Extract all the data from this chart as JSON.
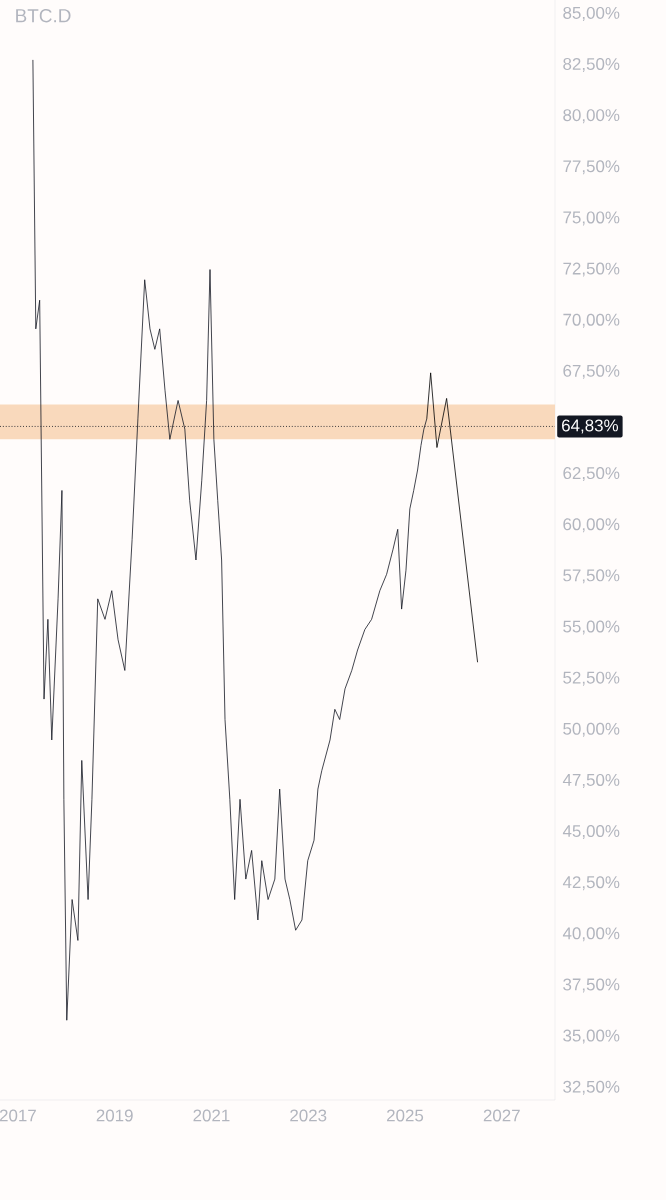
{
  "chart_data": {
    "type": "line",
    "title": "BTC.D",
    "xlim": [
      2016.63,
      2028.1
    ],
    "ylim": [
      31.9,
      85.68
    ],
    "xticks": [
      2017,
      2019,
      2021,
      2023,
      2025,
      2027
    ],
    "yticks": [
      {
        "value": 32.5,
        "label": "32,50%"
      },
      {
        "value": 35,
        "label": "35,00%"
      },
      {
        "value": 37.5,
        "label": "37,50%"
      },
      {
        "value": 40,
        "label": "40,00%"
      },
      {
        "value": 42.5,
        "label": "42,50%"
      },
      {
        "value": 45,
        "label": "45,00%"
      },
      {
        "value": 47.5,
        "label": "47,50%"
      },
      {
        "value": 50,
        "label": "50,00%"
      },
      {
        "value": 52.5,
        "label": "52,50%"
      },
      {
        "value": 55,
        "label": "55,00%"
      },
      {
        "value": 57.5,
        "label": "57,50%"
      },
      {
        "value": 60,
        "label": "60,00%"
      },
      {
        "value": 62.5,
        "label": "62,50%"
      },
      {
        "value": 67.5,
        "label": "67,50%"
      },
      {
        "value": 70,
        "label": "70,00%"
      },
      {
        "value": 72.5,
        "label": "72,50%"
      },
      {
        "value": 75,
        "label": "75,00%"
      },
      {
        "value": 77.5,
        "label": "77,50%"
      },
      {
        "value": 80,
        "label": "80,00%"
      },
      {
        "value": 82.5,
        "label": "82,50%"
      },
      {
        "value": 85,
        "label": "85,00%"
      }
    ],
    "series": [
      {
        "color": "#131722",
        "x": [
          2017.31,
          2017.37,
          2017.45,
          2017.54,
          2017.62,
          2017.7,
          2017.83,
          2017.91,
          2017.95,
          2018.01,
          2018.12,
          2018.24,
          2018.32,
          2018.45,
          2018.53,
          2018.65,
          2018.8,
          2018.94,
          2019.07,
          2019.21,
          2019.36,
          2019.48,
          2019.62,
          2019.73,
          2019.83,
          2019.93,
          2020.04,
          2020.14,
          2020.31,
          2020.45,
          2020.55,
          2020.68,
          2020.8,
          2020.9,
          2020.97,
          2021.05,
          2021.13,
          2021.21,
          2021.28,
          2021.38,
          2021.48,
          2021.59,
          2021.71,
          2021.83,
          2021.96,
          2022.04,
          2022.17,
          2022.31,
          2022.41,
          2022.52,
          2022.62,
          2022.74,
          2022.87,
          2022.99,
          2023.12,
          2023.2,
          2023.28,
          2023.45,
          2023.55,
          2023.65,
          2023.76,
          2023.9,
          2024.02,
          2024.17,
          2024.31,
          2024.48,
          2024.62,
          2024.75,
          2024.85,
          2024.93,
          2025.02,
          2025.1,
          2025.18,
          2025.26,
          2025.33,
          2025.39,
          2025.45
        ],
        "values": [
          82.75,
          69.6,
          71.0,
          51.5,
          55.4,
          49.5,
          56.4,
          61.7,
          46.6,
          35.8,
          41.7,
          39.7,
          48.5,
          41.7,
          46.6,
          56.4,
          55.4,
          56.8,
          54.4,
          52.9,
          59.3,
          65.2,
          72.0,
          69.6,
          68.6,
          69.6,
          66.6,
          64.2,
          66.1,
          64.7,
          61.2,
          58.3,
          62.2,
          66.1,
          72.5,
          64.2,
          61.2,
          58.3,
          50.5,
          46.6,
          41.7,
          46.6,
          42.7,
          44.1,
          40.7,
          43.6,
          41.7,
          42.7,
          47.1,
          42.7,
          41.7,
          40.2,
          40.7,
          43.6,
          44.6,
          47.1,
          48.0,
          49.5,
          51.0,
          50.5,
          52.0,
          52.9,
          53.9,
          54.9,
          55.4,
          56.8,
          57.6,
          58.8,
          59.8,
          55.9,
          57.8,
          60.8,
          61.7,
          62.7,
          63.9,
          64.7,
          65.2
        ]
      },
      {
        "color": "#000000",
        "x": [
          2025.45,
          2025.53,
          2025.66,
          2025.86,
          2026.5
        ],
        "values": [
          65.2,
          67.45,
          63.8,
          66.2,
          53.3
        ]
      }
    ],
    "bands": [
      {
        "axis": "y",
        "from": 64.2,
        "to": 65.9,
        "color": "#f9d9bc"
      }
    ],
    "ref_lines": [
      {
        "axis": "y",
        "value": 64.83,
        "label": "64,83%",
        "color": "#131722",
        "line_style": "dotted"
      }
    ],
    "grid": false,
    "marker": "none",
    "line_style": "solid"
  }
}
